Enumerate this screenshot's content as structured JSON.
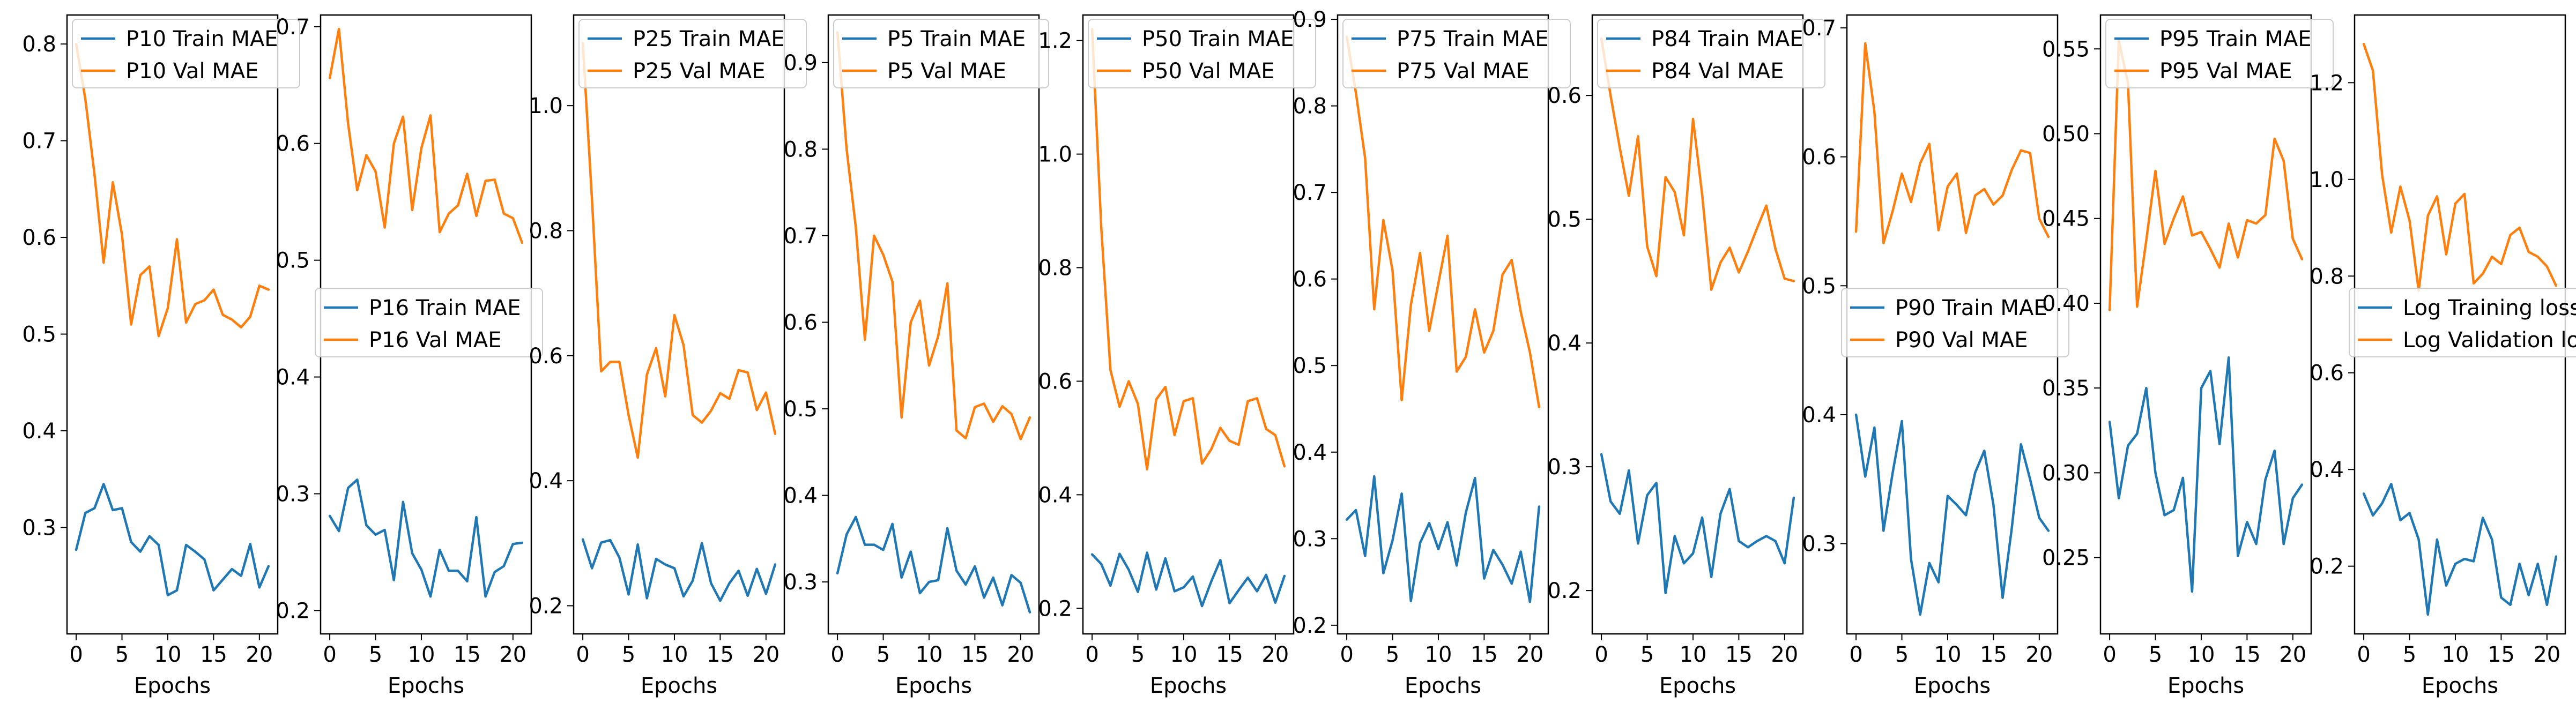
{
  "colors": {
    "train": "#1f77b4",
    "val": "#ff7f0e"
  },
  "chart_data": [
    {
      "type": "line",
      "xlabel": "Epochs",
      "xlim": [
        -1,
        22
      ],
      "xticks": [
        0,
        5,
        10,
        15,
        20
      ],
      "ylim": [
        0.19,
        0.83
      ],
      "yticks": [
        0.3,
        0.4,
        0.5,
        0.6,
        0.7,
        0.8
      ],
      "ytick_labels": [
        "0.3",
        "0.4",
        "0.5",
        "0.6",
        "0.7",
        "0.8"
      ],
      "legend_loc": "upper-left",
      "x": [
        0,
        1,
        2,
        3,
        4,
        5,
        6,
        7,
        8,
        9,
        10,
        11,
        12,
        13,
        14,
        15,
        16,
        17,
        18,
        19,
        20,
        21
      ],
      "series": [
        {
          "name": "P10 Train MAE",
          "color": "#1f77b4",
          "values": [
            0.277,
            0.315,
            0.32,
            0.345,
            0.318,
            0.32,
            0.285,
            0.275,
            0.291,
            0.282,
            0.23,
            0.235,
            0.282,
            0.275,
            0.267,
            0.235,
            0.246,
            0.257,
            0.25,
            0.283,
            0.238,
            0.26
          ]
        },
        {
          "name": "P10 Val MAE",
          "color": "#ff7f0e",
          "values": [
            0.8,
            0.743,
            0.665,
            0.574,
            0.657,
            0.603,
            0.51,
            0.561,
            0.57,
            0.498,
            0.527,
            0.598,
            0.512,
            0.531,
            0.535,
            0.546,
            0.52,
            0.515,
            0.507,
            0.518,
            0.55,
            0.546
          ]
        }
      ]
    },
    {
      "type": "line",
      "xlabel": "Epochs",
      "xlim": [
        -1,
        22
      ],
      "xticks": [
        0,
        5,
        10,
        15,
        20
      ],
      "ylim": [
        0.18,
        0.71
      ],
      "yticks": [
        0.2,
        0.3,
        0.4,
        0.5,
        0.6,
        0.7
      ],
      "ytick_labels": [
        "0.2",
        "0.3",
        "0.4",
        "0.5",
        "0.6",
        "0.7"
      ],
      "legend_loc": "center",
      "x": [
        0,
        1,
        2,
        3,
        4,
        5,
        6,
        7,
        8,
        9,
        10,
        11,
        12,
        13,
        14,
        15,
        16,
        17,
        18,
        19,
        20,
        21
      ],
      "series": [
        {
          "name": "P16 Train MAE",
          "color": "#1f77b4",
          "values": [
            0.281,
            0.268,
            0.305,
            0.312,
            0.273,
            0.265,
            0.269,
            0.226,
            0.293,
            0.249,
            0.235,
            0.212,
            0.252,
            0.234,
            0.234,
            0.225,
            0.28,
            0.212,
            0.233,
            0.238,
            0.257,
            0.258
          ]
        },
        {
          "name": "P16 Val MAE",
          "color": "#ff7f0e",
          "values": [
            0.656,
            0.698,
            0.617,
            0.56,
            0.59,
            0.576,
            0.528,
            0.6,
            0.623,
            0.543,
            0.596,
            0.624,
            0.524,
            0.54,
            0.547,
            0.574,
            0.538,
            0.568,
            0.569,
            0.54,
            0.536,
            0.515
          ]
        }
      ]
    },
    {
      "type": "line",
      "xlabel": "Epochs",
      "xlim": [
        -1,
        22
      ],
      "xticks": [
        0,
        5,
        10,
        15,
        20
      ],
      "ylim": [
        0.155,
        1.145
      ],
      "yticks": [
        0.2,
        0.4,
        0.6,
        0.8,
        1.0
      ],
      "ytick_labels": [
        "0.2",
        "0.4",
        "0.6",
        "0.8",
        "1.0"
      ],
      "legend_loc": "upper-left",
      "x": [
        0,
        1,
        2,
        3,
        4,
        5,
        6,
        7,
        8,
        9,
        10,
        11,
        12,
        13,
        14,
        15,
        16,
        17,
        18,
        19,
        20,
        21
      ],
      "series": [
        {
          "name": "P25 Train MAE",
          "color": "#1f77b4",
          "values": [
            0.306,
            0.26,
            0.301,
            0.305,
            0.277,
            0.218,
            0.298,
            0.212,
            0.275,
            0.266,
            0.26,
            0.215,
            0.24,
            0.3,
            0.236,
            0.208,
            0.236,
            0.256,
            0.216,
            0.259,
            0.219,
            0.266
          ]
        },
        {
          "name": "P25 Val MAE",
          "color": "#ff7f0e",
          "values": [
            1.1,
            0.85,
            0.575,
            0.59,
            0.59,
            0.505,
            0.437,
            0.57,
            0.612,
            0.535,
            0.665,
            0.617,
            0.505,
            0.493,
            0.512,
            0.54,
            0.531,
            0.577,
            0.573,
            0.513,
            0.541,
            0.475
          ]
        }
      ]
    },
    {
      "type": "line",
      "xlabel": "Epochs",
      "xlim": [
        -1,
        22
      ],
      "xticks": [
        0,
        5,
        10,
        15,
        20
      ],
      "ylim": [
        0.24,
        0.955
      ],
      "yticks": [
        0.3,
        0.4,
        0.5,
        0.6,
        0.7,
        0.8,
        0.9
      ],
      "ytick_labels": [
        "0.3",
        "0.4",
        "0.5",
        "0.6",
        "0.7",
        "0.8",
        "0.9"
      ],
      "legend_loc": "upper-left",
      "x": [
        0,
        1,
        2,
        3,
        4,
        5,
        6,
        7,
        8,
        9,
        10,
        11,
        12,
        13,
        14,
        15,
        16,
        17,
        18,
        19,
        20,
        21
      ],
      "series": [
        {
          "name": "P5 Train MAE",
          "color": "#1f77b4",
          "values": [
            0.31,
            0.355,
            0.375,
            0.343,
            0.343,
            0.337,
            0.367,
            0.305,
            0.335,
            0.287,
            0.3,
            0.302,
            0.362,
            0.313,
            0.297,
            0.318,
            0.282,
            0.305,
            0.273,
            0.308,
            0.299,
            0.265
          ]
        },
        {
          "name": "P5 Val MAE",
          "color": "#ff7f0e",
          "values": [
            0.935,
            0.8,
            0.71,
            0.58,
            0.7,
            0.678,
            0.647,
            0.49,
            0.6,
            0.625,
            0.55,
            0.584,
            0.645,
            0.475,
            0.466,
            0.502,
            0.506,
            0.485,
            0.503,
            0.494,
            0.465,
            0.49
          ]
        }
      ]
    },
    {
      "type": "line",
      "xlabel": "Epochs",
      "xlim": [
        -1,
        22
      ],
      "xticks": [
        0,
        5,
        10,
        15,
        20
      ],
      "ylim": [
        0.155,
        1.245
      ],
      "yticks": [
        0.2,
        0.4,
        0.6,
        0.8,
        1.0,
        1.2
      ],
      "ytick_labels": [
        "0.2",
        "0.4",
        "0.6",
        "0.8",
        "1.0",
        "1.2"
      ],
      "legend_loc": "upper-left",
      "x": [
        0,
        1,
        2,
        3,
        4,
        5,
        6,
        7,
        8,
        9,
        10,
        11,
        12,
        13,
        14,
        15,
        16,
        17,
        18,
        19,
        20,
        21
      ],
      "series": [
        {
          "name": "P50 Train MAE",
          "color": "#1f77b4",
          "values": [
            0.295,
            0.278,
            0.24,
            0.296,
            0.268,
            0.229,
            0.298,
            0.233,
            0.288,
            0.23,
            0.237,
            0.256,
            0.204,
            0.247,
            0.285,
            0.209,
            0.232,
            0.254,
            0.23,
            0.259,
            0.21,
            0.257
          ]
        },
        {
          "name": "P50 Val MAE",
          "color": "#ff7f0e",
          "values": [
            1.22,
            0.87,
            0.62,
            0.555,
            0.6,
            0.56,
            0.445,
            0.568,
            0.59,
            0.505,
            0.565,
            0.57,
            0.455,
            0.48,
            0.518,
            0.495,
            0.488,
            0.565,
            0.57,
            0.516,
            0.505,
            0.45
          ]
        }
      ]
    },
    {
      "type": "line",
      "xlabel": "Epochs",
      "xlim": [
        -1,
        22
      ],
      "xticks": [
        0,
        5,
        10,
        15,
        20
      ],
      "ylim": [
        0.19,
        0.905
      ],
      "yticks": [
        0.2,
        0.3,
        0.4,
        0.5,
        0.6,
        0.7,
        0.8,
        0.9
      ],
      "ytick_labels": [
        "0.2",
        "0.3",
        "0.4",
        "0.5",
        "0.6",
        "0.7",
        "0.8",
        "0.9"
      ],
      "legend_loc": "upper-left",
      "x": [
        0,
        1,
        2,
        3,
        4,
        5,
        6,
        7,
        8,
        9,
        10,
        11,
        12,
        13,
        14,
        15,
        16,
        17,
        18,
        19,
        20,
        21
      ],
      "series": [
        {
          "name": "P75 Train MAE",
          "color": "#1f77b4",
          "values": [
            0.322,
            0.333,
            0.28,
            0.372,
            0.26,
            0.298,
            0.352,
            0.228,
            0.295,
            0.318,
            0.288,
            0.319,
            0.269,
            0.33,
            0.37,
            0.254,
            0.287,
            0.27,
            0.248,
            0.285,
            0.227,
            0.337
          ]
        },
        {
          "name": "P75 Val MAE",
          "color": "#ff7f0e",
          "values": [
            0.88,
            0.815,
            0.74,
            0.565,
            0.668,
            0.61,
            0.46,
            0.57,
            0.63,
            0.54,
            0.595,
            0.65,
            0.493,
            0.51,
            0.565,
            0.515,
            0.54,
            0.605,
            0.622,
            0.562,
            0.515,
            0.452
          ]
        }
      ]
    },
    {
      "type": "line",
      "xlabel": "Epochs",
      "xlim": [
        -1,
        22
      ],
      "xticks": [
        0,
        5,
        10,
        15,
        20
      ],
      "ylim": [
        0.165,
        0.665
      ],
      "yticks": [
        0.2,
        0.3,
        0.4,
        0.5,
        0.6
      ],
      "ytick_labels": [
        "0.2",
        "0.3",
        "0.4",
        "0.5",
        "0.6"
      ],
      "legend_loc": "upper-left",
      "x": [
        0,
        1,
        2,
        3,
        4,
        5,
        6,
        7,
        8,
        9,
        10,
        11,
        12,
        13,
        14,
        15,
        16,
        17,
        18,
        19,
        20,
        21
      ],
      "series": [
        {
          "name": "P84 Train MAE",
          "color": "#1f77b4",
          "values": [
            0.31,
            0.272,
            0.262,
            0.297,
            0.238,
            0.277,
            0.287,
            0.198,
            0.244,
            0.222,
            0.23,
            0.259,
            0.211,
            0.262,
            0.282,
            0.24,
            0.235,
            0.24,
            0.244,
            0.24,
            0.222,
            0.275
          ]
        },
        {
          "name": "P84 Val MAE",
          "color": "#ff7f0e",
          "values": [
            0.646,
            0.6,
            0.558,
            0.519,
            0.567,
            0.478,
            0.454,
            0.534,
            0.522,
            0.487,
            0.581,
            0.52,
            0.443,
            0.465,
            0.477,
            0.457,
            0.474,
            0.493,
            0.511,
            0.476,
            0.452,
            0.45
          ]
        }
      ]
    },
    {
      "type": "line",
      "xlabel": "Epochs",
      "xlim": [
        -1,
        22
      ],
      "xticks": [
        0,
        5,
        10,
        15,
        20
      ],
      "ylim": [
        0.23,
        0.71
      ],
      "yticks": [
        0.3,
        0.4,
        0.5,
        0.6,
        0.7
      ],
      "ytick_labels": [
        "0.3",
        "0.4",
        "0.5",
        "0.6",
        "0.7"
      ],
      "legend_loc": "center",
      "x": [
        0,
        1,
        2,
        3,
        4,
        5,
        6,
        7,
        8,
        9,
        10,
        11,
        12,
        13,
        14,
        15,
        16,
        17,
        18,
        19,
        20,
        21
      ],
      "series": [
        {
          "name": "P90 Train MAE",
          "color": "#1f77b4",
          "values": [
            0.4,
            0.352,
            0.39,
            0.31,
            0.355,
            0.395,
            0.288,
            0.245,
            0.285,
            0.27,
            0.337,
            0.33,
            0.322,
            0.355,
            0.372,
            0.33,
            0.258,
            0.312,
            0.377,
            0.35,
            0.32,
            0.31
          ]
        },
        {
          "name": "P90 Val MAE",
          "color": "#ff7f0e",
          "values": [
            0.542,
            0.688,
            0.635,
            0.533,
            0.558,
            0.587,
            0.565,
            0.595,
            0.61,
            0.543,
            0.577,
            0.587,
            0.541,
            0.57,
            0.575,
            0.563,
            0.57,
            0.59,
            0.605,
            0.603,
            0.552,
            0.538
          ]
        }
      ]
    },
    {
      "type": "line",
      "xlabel": "Epochs",
      "xlim": [
        -1,
        22
      ],
      "xticks": [
        0,
        5,
        10,
        15,
        20
      ],
      "ylim": [
        0.205,
        0.57
      ],
      "yticks": [
        0.25,
        0.3,
        0.35,
        0.4,
        0.45,
        0.5,
        0.55
      ],
      "ytick_labels": [
        "0.25",
        "0.30",
        "0.35",
        "0.40",
        "0.45",
        "0.50",
        "0.55"
      ],
      "legend_loc": "upper-left",
      "x": [
        0,
        1,
        2,
        3,
        4,
        5,
        6,
        7,
        8,
        9,
        10,
        11,
        12,
        13,
        14,
        15,
        16,
        17,
        18,
        19,
        20,
        21
      ],
      "series": [
        {
          "name": "P95 Train MAE",
          "color": "#1f77b4",
          "values": [
            0.33,
            0.285,
            0.316,
            0.323,
            0.35,
            0.3,
            0.275,
            0.278,
            0.297,
            0.23,
            0.35,
            0.36,
            0.317,
            0.368,
            0.251,
            0.271,
            0.258,
            0.296,
            0.313,
            0.258,
            0.285,
            0.293
          ]
        },
        {
          "name": "P95 Val MAE",
          "color": "#ff7f0e",
          "values": [
            0.396,
            0.555,
            0.53,
            0.398,
            0.437,
            0.478,
            0.435,
            0.45,
            0.463,
            0.44,
            0.442,
            0.432,
            0.421,
            0.447,
            0.427,
            0.449,
            0.447,
            0.452,
            0.497,
            0.484,
            0.438,
            0.426
          ]
        }
      ]
    },
    {
      "type": "line",
      "xlabel": "Epochs",
      "xlim": [
        -1,
        22
      ],
      "xticks": [
        0,
        5,
        10,
        15,
        20
      ],
      "ylim": [
        0.06,
        1.34
      ],
      "yticks": [
        0.2,
        0.4,
        0.6,
        0.8,
        1.0,
        1.2
      ],
      "ytick_labels": [
        "0.2",
        "0.4",
        "0.6",
        "0.8",
        "1.0",
        "1.2"
      ],
      "legend_loc": "center",
      "x": [
        0,
        1,
        2,
        3,
        4,
        5,
        6,
        7,
        8,
        9,
        10,
        11,
        12,
        13,
        14,
        15,
        16,
        17,
        18,
        19,
        20,
        21
      ],
      "series": [
        {
          "name": "Log Training loss",
          "color": "#1f77b4",
          "values": [
            0.35,
            0.305,
            0.33,
            0.37,
            0.295,
            0.31,
            0.255,
            0.1,
            0.255,
            0.16,
            0.205,
            0.215,
            0.21,
            0.3,
            0.255,
            0.135,
            0.12,
            0.205,
            0.14,
            0.205,
            0.12,
            0.22
          ]
        },
        {
          "name": "Log Validation loss",
          "color": "#ff7f0e",
          "values": [
            1.28,
            1.225,
            1.01,
            0.89,
            0.985,
            0.915,
            0.77,
            0.925,
            0.965,
            0.845,
            0.95,
            0.97,
            0.785,
            0.805,
            0.84,
            0.825,
            0.885,
            0.9,
            0.85,
            0.84,
            0.82,
            0.78
          ]
        }
      ]
    }
  ]
}
